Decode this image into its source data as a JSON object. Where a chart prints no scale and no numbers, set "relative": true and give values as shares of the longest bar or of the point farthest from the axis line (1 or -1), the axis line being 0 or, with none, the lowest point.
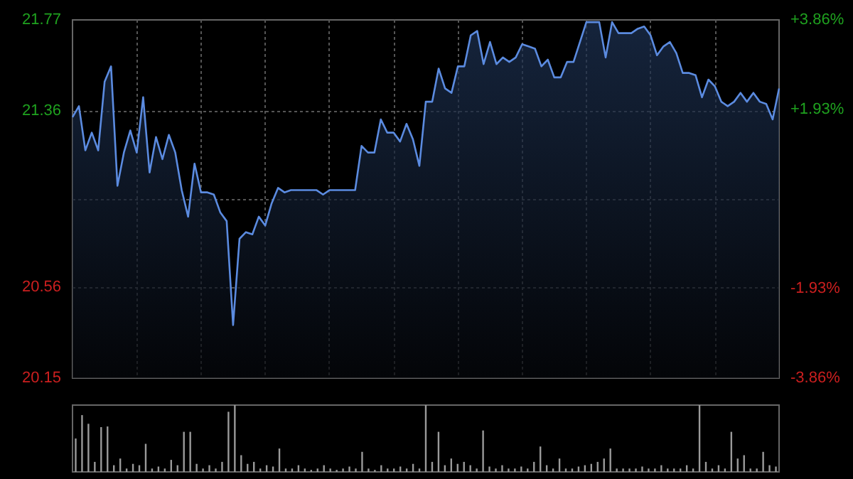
{
  "chart_data": [
    {
      "type": "area",
      "categories": [
        null,
        null,
        null,
        null,
        null,
        null,
        null,
        null,
        null,
        null,
        null,
        null,
        null,
        null,
        null,
        null,
        null,
        null,
        null,
        null,
        null,
        null,
        null,
        null,
        null,
        null,
        null,
        null,
        null,
        null,
        null,
        null,
        null,
        null,
        null,
        null,
        null,
        null,
        null,
        null,
        null,
        null,
        null,
        null,
        null,
        null,
        null,
        null,
        null,
        null,
        null,
        null,
        null,
        null,
        null,
        null,
        null,
        null,
        null,
        null,
        null,
        null,
        null,
        null,
        null,
        null,
        null,
        null,
        null,
        null,
        null,
        null,
        null,
        null,
        null,
        null,
        null,
        null,
        null,
        null,
        null,
        null,
        null,
        null,
        null,
        null,
        null,
        null,
        null,
        null,
        null,
        null,
        null,
        null,
        null,
        null,
        null,
        null,
        null,
        null,
        null,
        null,
        null,
        null,
        null,
        null,
        null,
        null,
        null,
        null,
        null
      ],
      "series": [
        {
          "color": "#5b8be0",
          "values": [
            21.33,
            21.38,
            21.18,
            21.26,
            21.18,
            21.49,
            21.56,
            21.02,
            21.17,
            21.27,
            21.17,
            21.42,
            21.08,
            21.24,
            21.14,
            21.25,
            21.17,
            21.0,
            20.88,
            21.12,
            20.99,
            20.99,
            20.98,
            20.9,
            20.86,
            20.39,
            20.78,
            20.81,
            20.8,
            20.88,
            20.84,
            20.94,
            21.01,
            20.99,
            21.0,
            21.0,
            21.0,
            21.0,
            21.0,
            20.98,
            21.0,
            21.0,
            21.0,
            21.0,
            21.0,
            21.2,
            21.17,
            21.17,
            21.32,
            21.26,
            21.26,
            21.22,
            21.3,
            21.23,
            21.11,
            21.4,
            21.4,
            21.55,
            21.46,
            21.44,
            21.56,
            21.56,
            21.7,
            21.72,
            21.57,
            21.67,
            21.57,
            21.6,
            21.58,
            21.6,
            21.66,
            21.65,
            21.64,
            21.56,
            21.59,
            21.51,
            21.51,
            21.58,
            21.58,
            21.67,
            21.76,
            21.76,
            21.76,
            21.6,
            21.76,
            21.71,
            21.71,
            21.71,
            21.73,
            21.74,
            21.7,
            21.61,
            21.65,
            21.67,
            21.62,
            21.53,
            21.53,
            21.52,
            21.42,
            21.5,
            21.47,
            21.4,
            21.38,
            21.4,
            21.44,
            21.4,
            21.44,
            21.4,
            21.39,
            21.32,
            21.46
          ]
        }
      ],
      "ylim": [
        20.15,
        21.77
      ],
      "yticks": [
        20.15,
        20.56,
        {
          "value": 20.96,
          "label": null
        },
        21.36,
        21.77
      ],
      "y2lim": [
        -3.86,
        3.86
      ],
      "y2ticks": [
        {
          "value": -3.86,
          "label": "-3.86%"
        },
        {
          "value": -1.93,
          "label": "-1.93%"
        },
        {
          "value": 1.93,
          "label": "+1.93%"
        },
        {
          "value": 3.86,
          "label": "+3.86%"
        }
      ],
      "tick_labels": "y",
      "grid": true
    },
    {
      "type": "bar",
      "relative": true,
      "color": "#9a9a9a",
      "tick_labels": false,
      "categories": [
        null,
        null,
        null,
        null,
        null,
        null,
        null,
        null,
        null,
        null,
        null,
        null,
        null,
        null,
        null,
        null,
        null,
        null,
        null,
        null,
        null,
        null,
        null,
        null,
        null,
        null,
        null,
        null,
        null,
        null,
        null,
        null,
        null,
        null,
        null,
        null,
        null,
        null,
        null,
        null,
        null,
        null,
        null,
        null,
        null,
        null,
        null,
        null,
        null,
        null,
        null,
        null,
        null,
        null,
        null,
        null,
        null,
        null,
        null,
        null,
        null,
        null,
        null,
        null,
        null,
        null,
        null,
        null,
        null,
        null,
        null,
        null,
        null,
        null,
        null,
        null,
        null,
        null,
        null,
        null,
        null,
        null,
        null,
        null,
        null,
        null,
        null,
        null,
        null,
        null,
        null,
        null,
        null,
        null,
        null,
        null,
        null,
        null,
        null,
        null,
        null,
        null,
        null,
        null,
        null,
        null,
        null,
        null,
        null,
        null,
        null
      ],
      "values": [
        0.5,
        0.85,
        0.72,
        0.15,
        0.67,
        0.68,
        0.1,
        0.2,
        0.05,
        0.12,
        0.1,
        0.42,
        0.05,
        0.08,
        0.05,
        0.18,
        0.1,
        0.6,
        0.6,
        0.12,
        0.05,
        0.1,
        0.05,
        0.15,
        0.9,
        1,
        0.25,
        0.12,
        0.15,
        0.05,
        0.1,
        0.08,
        0.35,
        0.05,
        0.05,
        0.1,
        0.05,
        0.03,
        0.05,
        0.1,
        0.05,
        0.03,
        0.05,
        0.08,
        0.05,
        0.3,
        0.05,
        0.03,
        0.1,
        0.05,
        0.05,
        0.08,
        0.05,
        0.12,
        0.05,
        1,
        0.15,
        0.6,
        0.1,
        0.2,
        0.12,
        0.15,
        0.1,
        0.05,
        0.62,
        0.08,
        0.05,
        0.1,
        0.05,
        0.05,
        0.08,
        0.05,
        0.15,
        0.38,
        0.1,
        0.05,
        0.2,
        0.05,
        0.05,
        0.08,
        0.1,
        0.12,
        0.15,
        0.2,
        0.35,
        0.05,
        0.05,
        0.05,
        0.05,
        0.08,
        0.05,
        0.05,
        0.1,
        0.05,
        0.05,
        0.05,
        0.1,
        0.05,
        1,
        0.15,
        0.05,
        0.1,
        0.05,
        0.6,
        0.2,
        0.25,
        0.05,
        0.05,
        0.3,
        0.1,
        0.08
      ]
    }
  ]
}
